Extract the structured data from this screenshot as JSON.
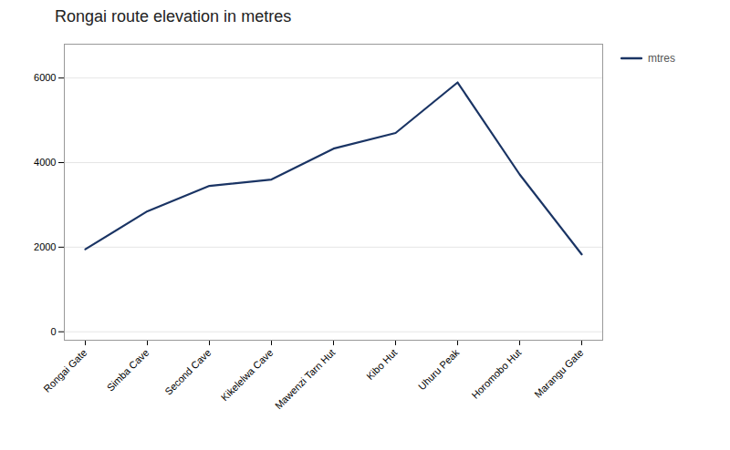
{
  "chart_data": {
    "type": "line",
    "title": "Rongai route elevation in metres",
    "categories": [
      "Rongai Gate",
      "Simba Cave",
      "Second Cave",
      "Kikelelwa Cave",
      "Mawenzi Tarn Hut",
      "Kibo Hut",
      "Uhuru Peak",
      "Horomobo Hut",
      "Marangu Gate"
    ],
    "series": [
      {
        "name": "mtres",
        "color": "#1a3464",
        "values": [
          1950,
          2850,
          3450,
          3600,
          4330,
          4700,
          5895,
          3720,
          1830
        ]
      }
    ],
    "ylim": [
      -200,
      6800
    ],
    "yticks": [
      0,
      2000,
      4000,
      6000
    ],
    "grid": true,
    "legend": "upper right"
  }
}
